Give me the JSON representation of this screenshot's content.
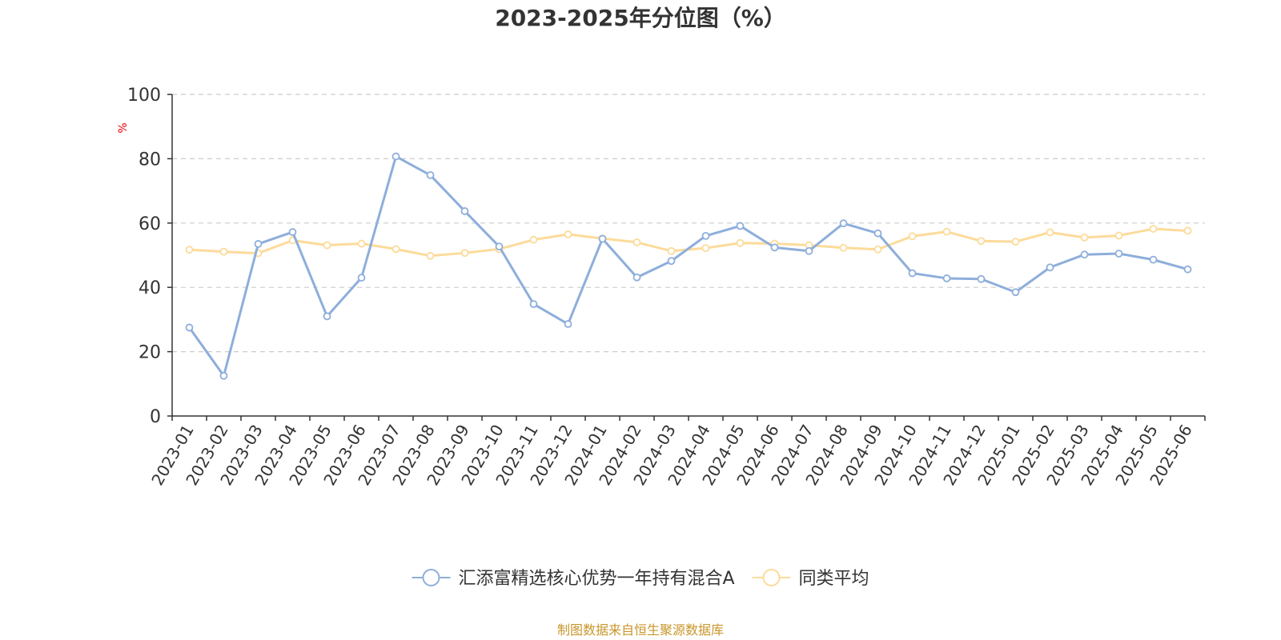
{
  "chart_data": {
    "type": "line",
    "title": "2023-2025年分位图（%）",
    "ylabel": "%",
    "xlabel": "",
    "ylim": [
      0,
      100
    ],
    "yticks": [
      0,
      20,
      40,
      60,
      80,
      100
    ],
    "grid": true,
    "legend_position": "bottom-center",
    "categories": [
      "2023-01",
      "2023-02",
      "2023-03",
      "2023-04",
      "2023-05",
      "2023-06",
      "2023-07",
      "2023-08",
      "2023-09",
      "2023-10",
      "2023-11",
      "2023-12",
      "2024-01",
      "2024-02",
      "2024-03",
      "2024-04",
      "2024-05",
      "2024-06",
      "2024-07",
      "2024-08",
      "2024-09",
      "2024-10",
      "2024-11",
      "2024-12",
      "2025-01",
      "2025-02",
      "2025-03",
      "2025-04",
      "2025-05",
      "2025-06"
    ],
    "series": [
      {
        "name": "汇添富精选核心优势一年持有混合A",
        "color": "#8eaedb",
        "values": [
          27.5,
          12.5,
          53.5,
          57.2,
          31.0,
          43.0,
          80.7,
          74.9,
          63.7,
          52.7,
          34.8,
          28.6,
          55.1,
          43.1,
          48.2,
          56.0,
          59.1,
          52.4,
          51.3,
          59.9,
          56.8,
          44.4,
          42.8,
          42.6,
          38.5,
          46.2,
          50.2,
          50.5,
          48.6,
          45.6
        ]
      },
      {
        "name": "同类平均",
        "color": "#fcdb9a",
        "values": [
          51.7,
          51.1,
          50.6,
          54.6,
          53.1,
          53.6,
          51.9,
          49.8,
          50.7,
          51.9,
          54.8,
          56.5,
          55.2,
          54.0,
          51.3,
          52.2,
          53.8,
          53.6,
          53.1,
          52.3,
          51.8,
          55.9,
          57.3,
          54.4,
          54.2,
          57.1,
          55.5,
          56.1,
          58.2,
          57.6
        ]
      }
    ]
  },
  "unit_color": "#e60000",
  "source": {
    "text": "制图数据来自恒生聚源数据库",
    "color": "#c8962a"
  }
}
